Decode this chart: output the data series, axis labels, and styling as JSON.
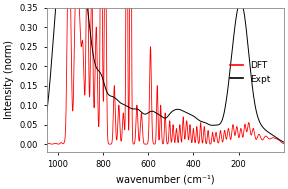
{
  "title": "",
  "xlabel": "wavenumber (cm⁻¹)",
  "ylabel": "Intensity (norm)",
  "xlim": [
    1050,
    0
  ],
  "ylim": [
    -0.02,
    0.35
  ],
  "bg_color": "#ffffff",
  "dft_color": "#ff0000",
  "expt_color": "#000000",
  "legend_dft": "DFT",
  "legend_expt": "Expt",
  "xticks": [
    1000,
    800,
    600,
    400,
    200
  ],
  "figsize": [
    2.88,
    1.89
  ],
  "dpi": 100
}
